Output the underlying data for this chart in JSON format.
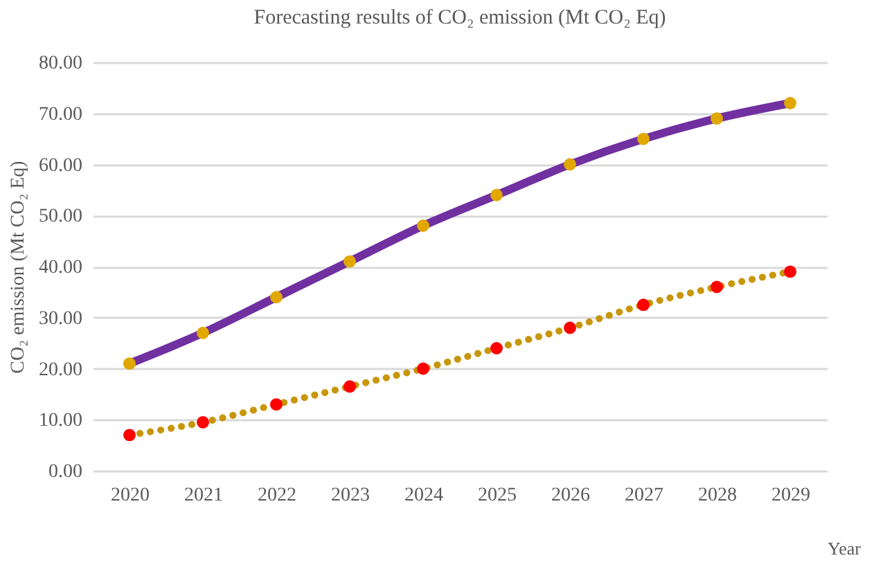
{
  "chart_data": {
    "type": "line",
    "title": "Forecasting results of CO₂ emission (Mt CO₂ Eq)",
    "xlabel": "Year",
    "ylabel": "CO₂ emission (Mt CO₂ Eq)",
    "categories": [
      "2020",
      "2021",
      "2022",
      "2023",
      "2024",
      "2025",
      "2026",
      "2027",
      "2028",
      "2029"
    ],
    "series": [
      {
        "color": "#7030a0",
        "line_style": "solid",
        "marker": "none",
        "values": [
          21,
          27,
          34,
          41,
          48,
          54,
          60,
          65,
          69,
          72
        ]
      },
      {
        "type": "scatter",
        "color": "#e0a800",
        "marker": "circle",
        "values": [
          21,
          27,
          34,
          41,
          48,
          54,
          60,
          65,
          69,
          72
        ]
      },
      {
        "color": "#c8960a",
        "line_style": "dotted",
        "marker": "none",
        "values": [
          7,
          9.5,
          13,
          16.5,
          20,
          24,
          28,
          32.5,
          36,
          39
        ]
      },
      {
        "type": "scatter",
        "color": "#ff0000",
        "marker": "circle",
        "values": [
          7,
          9.5,
          13,
          16.5,
          20,
          24,
          28,
          32.5,
          36,
          39
        ]
      }
    ],
    "ylim": [
      0,
      80
    ],
    "yticks": [
      {
        "value": 0,
        "label": "0.00"
      },
      {
        "value": 10,
        "label": "10.00"
      },
      {
        "value": 20,
        "label": "20.00"
      },
      {
        "value": 30,
        "label": "30.00"
      },
      {
        "value": 40,
        "label": "40.00"
      },
      {
        "value": 50,
        "label": "50.00"
      },
      {
        "value": 60,
        "label": "60.00"
      },
      {
        "value": 70,
        "label": "70.00"
      },
      {
        "value": 80,
        "label": "80.00"
      }
    ],
    "grid": "y"
  }
}
